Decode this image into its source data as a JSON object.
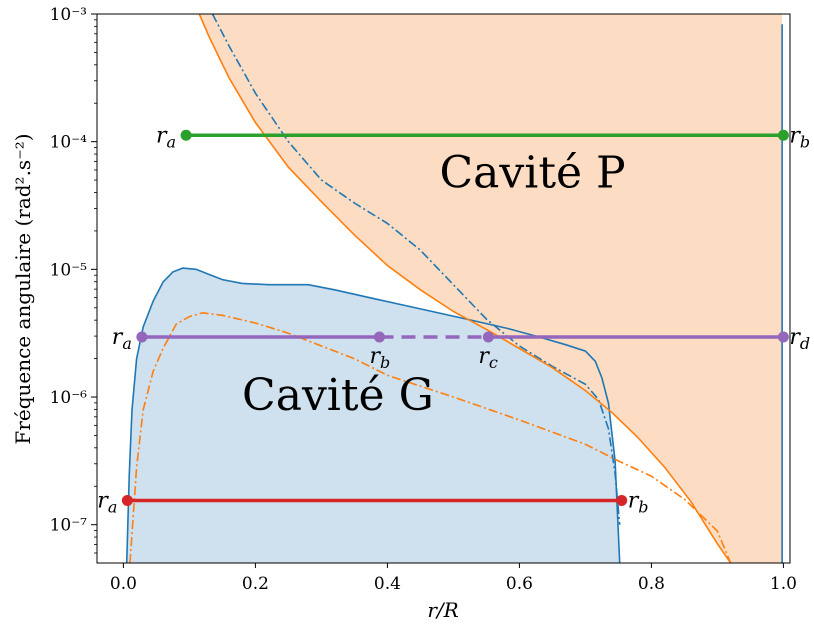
{
  "chart_data": {
    "type": "line",
    "title": "",
    "xlabel": "r/R",
    "ylabel": "Fréquence angulaire (rad².s⁻²)",
    "xlim": [
      -0.04,
      1.01
    ],
    "ylim_log10": [
      -7.3,
      -3
    ],
    "yscale": "log",
    "grid": false,
    "xticks": [
      {
        "value": 0.0,
        "label": "0.0"
      },
      {
        "value": 0.2,
        "label": "0.2"
      },
      {
        "value": 0.4,
        "label": "0.4"
      },
      {
        "value": 0.6,
        "label": "0.6"
      },
      {
        "value": 0.8,
        "label": "0.8"
      },
      {
        "value": 1.0,
        "label": "1.0"
      }
    ],
    "yticks": [
      {
        "exp": -3,
        "label": "10⁻³"
      },
      {
        "exp": -4,
        "label": "10⁻⁴"
      },
      {
        "exp": -5,
        "label": "10⁻⁵"
      },
      {
        "exp": -6,
        "label": "10⁻⁶"
      },
      {
        "exp": -7,
        "label": "10⁻⁷"
      }
    ],
    "regions": [
      {
        "label": "Cavité G",
        "color": "#cfe0ee",
        "label_at": [
          0.325,
          -6.1
        ],
        "boundary_log10": [
          [
            0.005,
            -7.3
          ],
          [
            0.009,
            -6.6
          ],
          [
            0.013,
            -6.1
          ],
          [
            0.02,
            -5.7
          ],
          [
            0.03,
            -5.45
          ],
          [
            0.045,
            -5.25
          ],
          [
            0.06,
            -5.1
          ],
          [
            0.075,
            -5.02
          ],
          [
            0.09,
            -4.99
          ],
          [
            0.11,
            -5.0
          ],
          [
            0.13,
            -5.04
          ],
          [
            0.15,
            -5.08
          ],
          [
            0.18,
            -5.11
          ],
          [
            0.22,
            -5.12
          ],
          [
            0.28,
            -5.12
          ],
          [
            0.32,
            -5.16
          ],
          [
            0.38,
            -5.23
          ],
          [
            0.45,
            -5.31
          ],
          [
            0.52,
            -5.39
          ],
          [
            0.58,
            -5.46
          ],
          [
            0.63,
            -5.53
          ],
          [
            0.67,
            -5.59
          ],
          [
            0.7,
            -5.64
          ],
          [
            0.715,
            -5.72
          ],
          [
            0.725,
            -5.85
          ],
          [
            0.735,
            -6.05
          ],
          [
            0.745,
            -6.5
          ],
          [
            0.752,
            -7.3
          ]
        ]
      },
      {
        "label": "Cavité P",
        "color": "#fcdcc2",
        "label_at": [
          0.62,
          -4.36
        ],
        "boundary_log10": [
          [
            0.115,
            -3
          ],
          [
            0.13,
            -3.18
          ],
          [
            0.16,
            -3.5
          ],
          [
            0.2,
            -3.85
          ],
          [
            0.25,
            -4.2
          ],
          [
            0.3,
            -4.47
          ],
          [
            0.35,
            -4.73
          ],
          [
            0.4,
            -4.97
          ],
          [
            0.45,
            -5.16
          ],
          [
            0.5,
            -5.33
          ],
          [
            0.55,
            -5.47
          ],
          [
            0.6,
            -5.62
          ],
          [
            0.65,
            -5.77
          ],
          [
            0.7,
            -5.95
          ],
          [
            0.74,
            -6.12
          ],
          [
            0.78,
            -6.32
          ],
          [
            0.82,
            -6.55
          ],
          [
            0.86,
            -6.82
          ],
          [
            0.9,
            -7.15
          ],
          [
            0.92,
            -7.3
          ]
        ]
      }
    ],
    "series": [
      {
        "color": "#1f77b4",
        "style": "solid",
        "points_log10": [
          [
            0.005,
            -7.3
          ],
          [
            0.009,
            -6.6
          ],
          [
            0.013,
            -6.1
          ],
          [
            0.02,
            -5.7
          ],
          [
            0.03,
            -5.45
          ],
          [
            0.045,
            -5.25
          ],
          [
            0.06,
            -5.1
          ],
          [
            0.075,
            -5.02
          ],
          [
            0.09,
            -4.99
          ],
          [
            0.11,
            -5.0
          ],
          [
            0.13,
            -5.04
          ],
          [
            0.15,
            -5.08
          ],
          [
            0.18,
            -5.11
          ],
          [
            0.22,
            -5.12
          ],
          [
            0.28,
            -5.12
          ],
          [
            0.32,
            -5.16
          ],
          [
            0.38,
            -5.23
          ],
          [
            0.45,
            -5.31
          ],
          [
            0.52,
            -5.39
          ],
          [
            0.58,
            -5.46
          ],
          [
            0.63,
            -5.53
          ],
          [
            0.67,
            -5.59
          ],
          [
            0.7,
            -5.64
          ],
          [
            0.715,
            -5.72
          ],
          [
            0.725,
            -5.85
          ],
          [
            0.735,
            -6.05
          ],
          [
            0.745,
            -6.5
          ],
          [
            0.752,
            -7.3
          ]
        ]
      },
      {
        "color": "#1f77b4",
        "style": "solid",
        "points_log10": [
          [
            0.998,
            -7.3
          ],
          [
            0.998,
            -3.08
          ]
        ]
      },
      {
        "color": "#1f77b4",
        "style": "dashdot",
        "points_log10": [
          [
            0.135,
            -3
          ],
          [
            0.16,
            -3.25
          ],
          [
            0.2,
            -3.62
          ],
          [
            0.25,
            -4.0
          ],
          [
            0.3,
            -4.3
          ],
          [
            0.35,
            -4.48
          ],
          [
            0.4,
            -4.64
          ],
          [
            0.45,
            -4.85
          ],
          [
            0.5,
            -5.12
          ],
          [
            0.55,
            -5.39
          ],
          [
            0.6,
            -5.6
          ],
          [
            0.65,
            -5.76
          ],
          [
            0.7,
            -5.9
          ],
          [
            0.72,
            -6.02
          ],
          [
            0.735,
            -6.25
          ],
          [
            0.745,
            -6.6
          ],
          [
            0.752,
            -7.0
          ]
        ]
      },
      {
        "color": "#ff7f0e",
        "style": "solid",
        "points_log10": [
          [
            0.115,
            -3
          ],
          [
            0.13,
            -3.18
          ],
          [
            0.16,
            -3.5
          ],
          [
            0.2,
            -3.85
          ],
          [
            0.25,
            -4.2
          ],
          [
            0.3,
            -4.47
          ],
          [
            0.35,
            -4.73
          ],
          [
            0.4,
            -4.97
          ],
          [
            0.45,
            -5.16
          ],
          [
            0.5,
            -5.33
          ],
          [
            0.55,
            -5.47
          ],
          [
            0.6,
            -5.62
          ],
          [
            0.65,
            -5.77
          ],
          [
            0.7,
            -5.95
          ],
          [
            0.74,
            -6.12
          ],
          [
            0.78,
            -6.32
          ],
          [
            0.82,
            -6.55
          ],
          [
            0.86,
            -6.82
          ],
          [
            0.9,
            -7.15
          ],
          [
            0.92,
            -7.3
          ]
        ]
      },
      {
        "color": "#ff7f0e",
        "style": "dashdot",
        "points_log10": [
          [
            0.01,
            -7.3
          ],
          [
            0.02,
            -6.55
          ],
          [
            0.03,
            -6.1
          ],
          [
            0.045,
            -5.8
          ],
          [
            0.06,
            -5.62
          ],
          [
            0.08,
            -5.43
          ],
          [
            0.1,
            -5.37
          ],
          [
            0.12,
            -5.34
          ],
          [
            0.15,
            -5.36
          ],
          [
            0.2,
            -5.42
          ],
          [
            0.25,
            -5.5
          ],
          [
            0.3,
            -5.6
          ],
          [
            0.35,
            -5.7
          ],
          [
            0.4,
            -5.83
          ],
          [
            0.5,
            -6.0
          ],
          [
            0.6,
            -6.18
          ],
          [
            0.7,
            -6.37
          ],
          [
            0.75,
            -6.5
          ],
          [
            0.8,
            -6.62
          ],
          [
            0.85,
            -6.8
          ],
          [
            0.9,
            -7.05
          ],
          [
            0.92,
            -7.3
          ]
        ]
      }
    ],
    "mode_lines": [
      {
        "color": "#2ca02c",
        "y_log10": -3.95,
        "x_start": 0.095,
        "x_end": 1.0,
        "points": [
          {
            "x": 0.095,
            "label": "r_a",
            "side": "left"
          },
          {
            "x": 1.0,
            "label": "r_b",
            "side": "right"
          }
        ],
        "dashed_segments": []
      },
      {
        "color": "#9467bd",
        "y_log10": -5.53,
        "x_start": 0.028,
        "x_end": 1.0,
        "points": [
          {
            "x": 0.028,
            "label": "r_a",
            "side": "left"
          },
          {
            "x": 0.388,
            "label": "r_b",
            "side": "below"
          },
          {
            "x": 0.553,
            "label": "r_c",
            "side": "below"
          },
          {
            "x": 1.0,
            "label": "r_d",
            "side": "right"
          }
        ],
        "dashed_segments": [
          [
            0.388,
            0.553
          ]
        ]
      },
      {
        "color": "#d62728",
        "y_log10": -6.81,
        "x_start": 0.006,
        "x_end": 0.755,
        "points": [
          {
            "x": 0.006,
            "label": "r_a",
            "side": "left"
          },
          {
            "x": 0.755,
            "label": "r_b",
            "side": "right"
          }
        ],
        "dashed_segments": []
      }
    ]
  }
}
